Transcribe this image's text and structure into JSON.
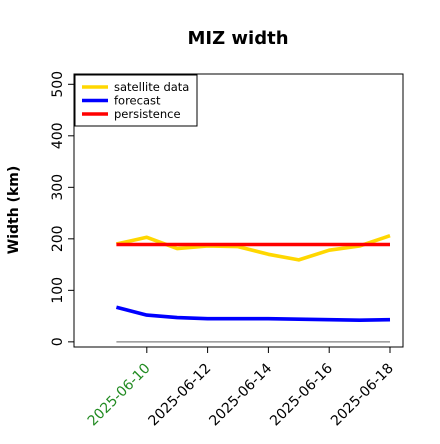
{
  "chart_data": {
    "type": "line",
    "title": "MIZ width",
    "ylabel": "Width (km)",
    "xlabel": "",
    "x": [
      "2025-06-09",
      "2025-06-10",
      "2025-06-11",
      "2025-06-12",
      "2025-06-13",
      "2025-06-14",
      "2025-06-15",
      "2025-06-16",
      "2025-06-17",
      "2025-06-18"
    ],
    "xlim": [
      "2025-06-08",
      "2025-06-18"
    ],
    "ylim": [
      -10,
      520
    ],
    "x_ticks": [
      "2025-06-10",
      "2025-06-12",
      "2025-06-14",
      "2025-06-16",
      "2025-06-18"
    ],
    "y_ticks": [
      0,
      100,
      200,
      300,
      400,
      500
    ],
    "highlighted_tick": "2025-06-10",
    "highlighted_tick_color": "#228B22",
    "grid": false,
    "legend_position": "top-left",
    "series": [
      {
        "name": "satellite data",
        "color": "#FFD700",
        "values": [
          190,
          203,
          181,
          186,
          185,
          170,
          159,
          178,
          186,
          206
        ]
      },
      {
        "name": "forecast",
        "color": "#0000FF",
        "values": [
          67,
          52,
          47,
          45,
          45,
          45,
          44,
          43,
          42,
          43
        ]
      },
      {
        "name": "persistence",
        "color": "#FF0000",
        "values": [
          189,
          189,
          189,
          189,
          189,
          189,
          189,
          189,
          189,
          189
        ]
      }
    ],
    "reference_line": {
      "y": 0,
      "color": "#808080"
    }
  }
}
